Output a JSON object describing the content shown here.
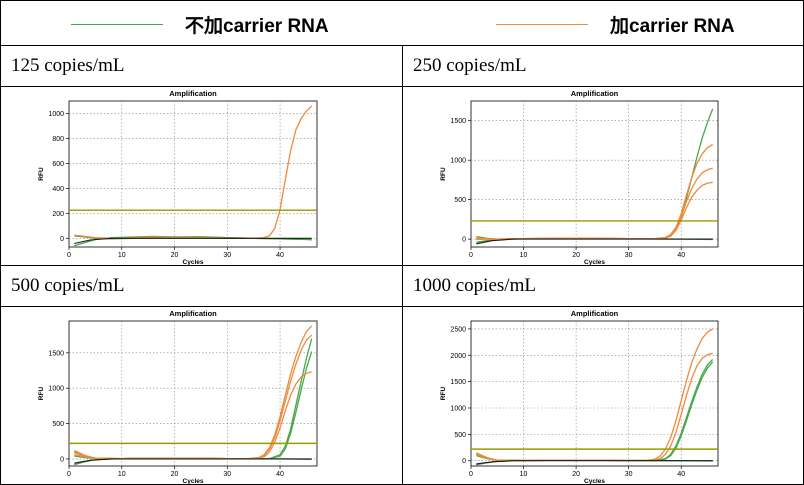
{
  "legend": [
    {
      "label": "不加carrier RNA",
      "color": "#4aa64a"
    },
    {
      "label": "加carrier RNA",
      "color": "#f08a3c"
    }
  ],
  "threshold_color": "#9a9a00",
  "baseline_color": "#1a1a1a",
  "chart_data": [
    {
      "type": "line",
      "panel_label": "125 copies/mL",
      "title": "Amplification",
      "xlabel": "Cycles",
      "ylabel": "RFU",
      "xlim": [
        0,
        47
      ],
      "ylim": [
        -70,
        1100
      ],
      "xticks": [
        0,
        10,
        20,
        30,
        40
      ],
      "yticks": [
        0,
        200,
        400,
        600,
        800,
        1000
      ],
      "grid": true,
      "threshold": 225,
      "series": [
        {
          "group": "加carrier RNA",
          "x": [
            1,
            3,
            5,
            8,
            12,
            16,
            20,
            25,
            30,
            35,
            37,
            38,
            39,
            40,
            41,
            42,
            43,
            44,
            45,
            46
          ],
          "y": [
            25,
            15,
            5,
            0,
            5,
            10,
            5,
            5,
            0,
            0,
            5,
            20,
            80,
            230,
            470,
            700,
            870,
            960,
            1020,
            1060
          ]
        },
        {
          "group": "不加carrier RNA",
          "x": [
            1,
            3,
            5,
            8,
            12,
            16,
            20,
            25,
            30,
            35,
            40,
            45,
            46
          ],
          "y": [
            -60,
            -35,
            -10,
            5,
            10,
            15,
            10,
            12,
            5,
            0,
            -5,
            -10,
            -12
          ]
        },
        {
          "group": "不加carrier RNA",
          "x": [
            1,
            3,
            5,
            8,
            12,
            16,
            20,
            25,
            30,
            35,
            40,
            45,
            46
          ],
          "y": [
            20,
            10,
            0,
            -5,
            0,
            5,
            10,
            8,
            5,
            0,
            -5,
            -8,
            -10
          ]
        }
      ]
    },
    {
      "type": "line",
      "panel_label": "250 copies/mL",
      "title": "Amplification",
      "xlabel": "Cycles",
      "ylabel": "RFU",
      "xlim": [
        0,
        47
      ],
      "ylim": [
        -100,
        1750
      ],
      "xticks": [
        0,
        10,
        20,
        30,
        40
      ],
      "yticks": [
        0,
        500,
        1000,
        1500
      ],
      "grid": true,
      "threshold": 230,
      "series": [
        {
          "group": "加carrier RNA",
          "x": [
            1,
            3,
            5,
            10,
            20,
            30,
            35,
            37,
            38,
            39,
            40,
            41,
            42,
            43,
            44,
            45,
            46
          ],
          "y": [
            10,
            5,
            0,
            5,
            10,
            5,
            5,
            20,
            60,
            150,
            320,
            560,
            780,
            960,
            1080,
            1160,
            1200
          ]
        },
        {
          "group": "加carrier RNA",
          "x": [
            1,
            3,
            5,
            10,
            20,
            30,
            35,
            37,
            38,
            39,
            40,
            41,
            42,
            43,
            44,
            45,
            46
          ],
          "y": [
            0,
            0,
            0,
            5,
            10,
            5,
            5,
            15,
            50,
            130,
            280,
            480,
            640,
            760,
            840,
            880,
            900
          ]
        },
        {
          "group": "加carrier RNA",
          "x": [
            1,
            3,
            5,
            10,
            20,
            30,
            35,
            37,
            38,
            39,
            40,
            41,
            42,
            43,
            44,
            45,
            46
          ],
          "y": [
            -5,
            0,
            0,
            5,
            10,
            5,
            5,
            10,
            40,
            110,
            240,
            400,
            530,
            620,
            680,
            710,
            720
          ]
        },
        {
          "group": "不加carrier RNA",
          "x": [
            1,
            3,
            5,
            10,
            20,
            30,
            36,
            38,
            39,
            40,
            41,
            42,
            43,
            44,
            45,
            46
          ],
          "y": [
            30,
            10,
            0,
            5,
            10,
            5,
            5,
            40,
            120,
            280,
            520,
            780,
            1040,
            1280,
            1480,
            1650
          ]
        },
        {
          "group": "不加carrier RNA",
          "x": [
            1,
            3,
            5,
            10,
            20,
            30,
            40,
            46
          ],
          "y": [
            -40,
            -20,
            -5,
            5,
            10,
            5,
            0,
            -5
          ]
        }
      ]
    },
    {
      "type": "line",
      "panel_label": "500 copies/mL",
      "title": "Amplification",
      "xlabel": "Cycles",
      "ylabel": "RFU",
      "xlim": [
        0,
        47
      ],
      "ylim": [
        -100,
        1950
      ],
      "xticks": [
        0,
        10,
        20,
        30,
        40
      ],
      "yticks": [
        0,
        500,
        1000,
        1500
      ],
      "grid": true,
      "threshold": 220,
      "series": [
        {
          "group": "加carrier RNA",
          "x": [
            1,
            3,
            5,
            10,
            20,
            30,
            34,
            36,
            37,
            38,
            39,
            40,
            41,
            42,
            43,
            44,
            45,
            46
          ],
          "y": [
            120,
            50,
            10,
            5,
            10,
            5,
            5,
            20,
            60,
            160,
            340,
            600,
            900,
            1200,
            1450,
            1650,
            1800,
            1880
          ]
        },
        {
          "group": "加carrier RNA",
          "x": [
            1,
            3,
            5,
            10,
            20,
            30,
            34,
            36,
            37,
            38,
            39,
            40,
            41,
            42,
            43,
            44,
            45,
            46
          ],
          "y": [
            90,
            40,
            10,
            5,
            10,
            5,
            5,
            15,
            50,
            140,
            300,
            540,
            820,
            1100,
            1340,
            1540,
            1680,
            1750
          ]
        },
        {
          "group": "加carrier RNA",
          "x": [
            1,
            3,
            5,
            10,
            20,
            30,
            35,
            37,
            38,
            39,
            40,
            41,
            42,
            43,
            44,
            45,
            46
          ],
          "y": [
            60,
            30,
            5,
            5,
            10,
            5,
            5,
            30,
            100,
            240,
            440,
            680,
            900,
            1060,
            1160,
            1210,
            1230
          ]
        },
        {
          "group": "不加carrier RNA",
          "x": [
            1,
            3,
            5,
            10,
            20,
            30,
            38,
            40,
            41,
            42,
            43,
            44,
            45,
            46
          ],
          "y": [
            100,
            40,
            10,
            5,
            10,
            5,
            5,
            60,
            180,
            420,
            760,
            1100,
            1420,
            1700
          ]
        },
        {
          "group": "不加carrier RNA",
          "x": [
            1,
            3,
            5,
            10,
            20,
            30,
            38,
            40,
            41,
            42,
            43,
            44,
            45,
            46
          ],
          "y": [
            40,
            20,
            5,
            5,
            10,
            5,
            5,
            40,
            140,
            360,
            660,
            980,
            1280,
            1520
          ]
        },
        {
          "group": "不加carrier RNA",
          "x": [
            1,
            3,
            5,
            10,
            20,
            30,
            40,
            46
          ],
          "y": [
            -80,
            -40,
            -10,
            5,
            10,
            5,
            0,
            -5
          ]
        }
      ]
    },
    {
      "type": "line",
      "panel_label": "1000 copies/mL",
      "title": "Amplification",
      "xlabel": "Cycles",
      "ylabel": "RFU",
      "xlim": [
        0,
        47
      ],
      "ylim": [
        -100,
        2650
      ],
      "xticks": [
        0,
        10,
        20,
        30,
        40
      ],
      "yticks": [
        0,
        500,
        1000,
        1500,
        2000,
        2500
      ],
      "grid": true,
      "threshold": 220,
      "series": [
        {
          "group": "加carrier RNA",
          "x": [
            1,
            3,
            5,
            10,
            20,
            30,
            33,
            35,
            36,
            37,
            38,
            39,
            40,
            41,
            42,
            43,
            44,
            45,
            46
          ],
          "y": [
            150,
            60,
            10,
            5,
            10,
            5,
            5,
            30,
            90,
            220,
            440,
            760,
            1140,
            1520,
            1860,
            2120,
            2320,
            2440,
            2500
          ]
        },
        {
          "group": "加carrier RNA",
          "x": [
            1,
            3,
            5,
            10,
            20,
            30,
            34,
            36,
            37,
            38,
            39,
            40,
            41,
            42,
            43,
            44,
            45,
            46
          ],
          "y": [
            120,
            50,
            10,
            5,
            10,
            5,
            5,
            40,
            120,
            280,
            540,
            880,
            1240,
            1560,
            1800,
            1940,
            2010,
            2040
          ]
        },
        {
          "group": "不加carrier RNA",
          "x": [
            1,
            3,
            5,
            10,
            20,
            30,
            35,
            37,
            38,
            39,
            40,
            41,
            42,
            43,
            44,
            45,
            46
          ],
          "y": [
            140,
            60,
            10,
            5,
            10,
            5,
            5,
            40,
            120,
            280,
            520,
            820,
            1120,
            1400,
            1640,
            1820,
            1920
          ]
        },
        {
          "group": "不加carrier RNA",
          "x": [
            1,
            3,
            5,
            10,
            20,
            30,
            35,
            37,
            38,
            39,
            40,
            41,
            42,
            43,
            44,
            45,
            46
          ],
          "y": [
            100,
            40,
            10,
            5,
            10,
            5,
            5,
            30,
            100,
            240,
            470,
            760,
            1060,
            1340,
            1580,
            1760,
            1870
          ]
        },
        {
          "group": "不加carrier RNA",
          "x": [
            1,
            3,
            5,
            10,
            20,
            30,
            40,
            46
          ],
          "y": [
            -80,
            -40,
            -10,
            5,
            10,
            5,
            0,
            -5
          ]
        }
      ]
    }
  ]
}
